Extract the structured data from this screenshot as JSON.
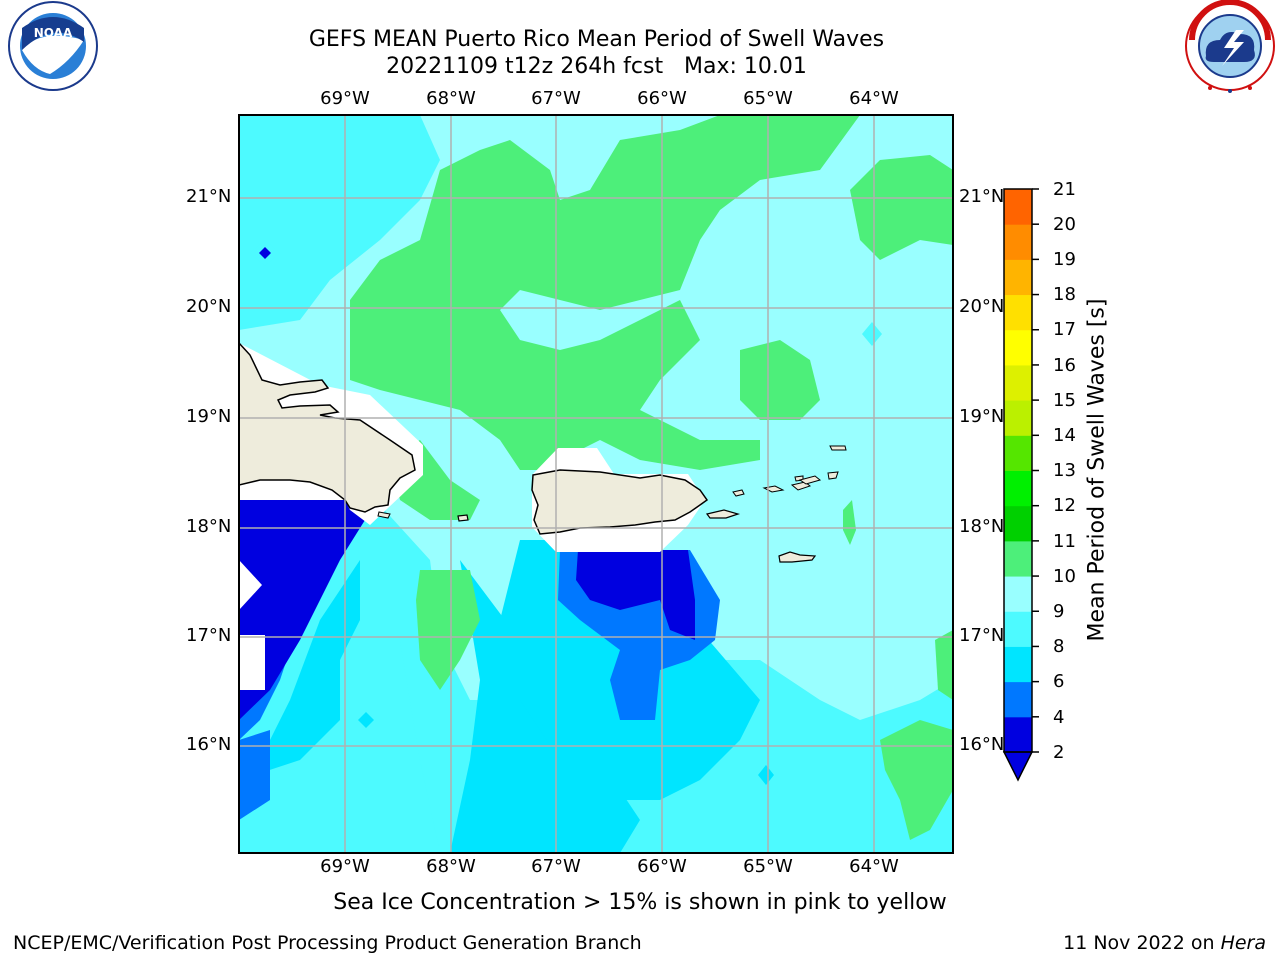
{
  "header": {
    "title_line1": "GEFS MEAN Puerto Rico Mean Period of Swell Waves",
    "title_line2": "20221109 t12z 264h fcst   Max: 10.01"
  },
  "logos": {
    "left": "NOAA",
    "right": "NATIONAL WEATHER SERVICE"
  },
  "map": {
    "lon_labels": [
      "69°W",
      "68°W",
      "67°W",
      "66°W",
      "65°W",
      "64°W"
    ],
    "lat_labels": [
      "21°N",
      "20°N",
      "19°N",
      "18°N",
      "17°N",
      "16°N"
    ],
    "land_color": "#eeecdc",
    "grid_color": "#b0b0b0"
  },
  "colorbar": {
    "label": "Mean Period of Swell Waves [s]",
    "ticks": [
      "21",
      "20",
      "19",
      "18",
      "17",
      "16",
      "15",
      "14",
      "13",
      "12",
      "11",
      "10",
      "9",
      "8",
      "6",
      "4",
      "2"
    ],
    "colors": [
      "#0000e0",
      "#0078ff",
      "#00e5ff",
      "#4dfaff",
      "#99ffff",
      "#4def7a",
      "#00d000",
      "#00f000",
      "#55e600",
      "#bbf000",
      "#ddf000",
      "#ffff00",
      "#ffe000",
      "#ffb400",
      "#ff8c00",
      "#ff6400",
      "#ff3200",
      "#ff0000"
    ]
  },
  "chart_data": {
    "type": "heatmap",
    "title": "GEFS MEAN Puerto Rico Mean Period of Swell Waves",
    "subtitle": "20221109 t12z 264h fcst   Max: 10.01",
    "variable": "Mean Period of Swell Waves [s]",
    "max": 10.01,
    "lon_range": [
      -70,
      -63.3
    ],
    "lat_range": [
      15,
      21.75
    ],
    "colorbar_levels": [
      2,
      4,
      6,
      8,
      9,
      10,
      11,
      12,
      13,
      14,
      15,
      16,
      17,
      18,
      19,
      20,
      21
    ]
  },
  "caption": "Sea Ice Concentration > 15% is shown in pink to yellow",
  "footer": {
    "left": "NCEP/EMC/Verification Post Processing Product Generation Branch",
    "right_date": "11 Nov 2022 on ",
    "right_host": "Hera"
  }
}
